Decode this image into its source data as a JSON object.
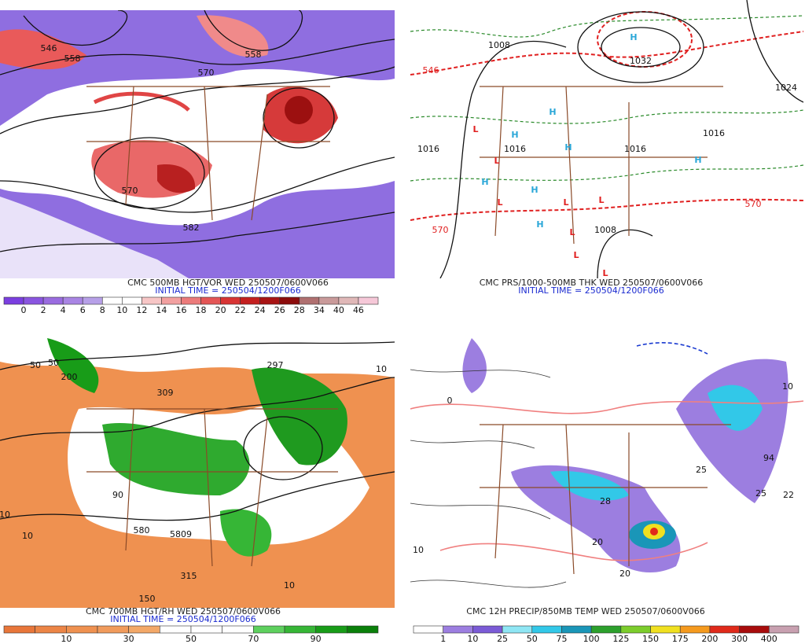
{
  "panels": [
    {
      "caption": "CMC 500MB HGT/VOR WED 250507/0600V066",
      "initial_time": "INITIAL TIME = 250504/1200F066",
      "colorbar": {
        "colors": [
          "#7b3fe0",
          "#8a55e0",
          "#9a6ce0",
          "#a985e4",
          "#b7a0e8",
          "#ffffff",
          "#ffffff",
          "#f7c6c6",
          "#f2a0a0",
          "#ec7b7b",
          "#e45656",
          "#d83434",
          "#c41f1f",
          "#a81414",
          "#8c0c0c",
          "#b07070",
          "#c99a9a",
          "#e0b8b8",
          "#f6c8d8"
        ],
        "labels": [
          "0",
          "2",
          "4",
          "6",
          "8",
          "10",
          "12",
          "14",
          "16",
          "18",
          "20",
          "22",
          "24",
          "26",
          "28",
          "34",
          "40",
          "46"
        ]
      },
      "map_labels": [
        {
          "text": "546"
        },
        {
          "text": "558"
        },
        {
          "text": "558"
        },
        {
          "text": "570"
        },
        {
          "text": "570"
        },
        {
          "text": "582"
        }
      ]
    },
    {
      "caption": "CMC PRS/1000-500MB THK WED 250507/0600V066",
      "initial_time": "INITIAL TIME = 250504/1200F066",
      "map_labels": [
        {
          "text": "H",
          "color": "#2aa7d8"
        },
        {
          "text": "1032"
        },
        {
          "text": "1016"
        },
        {
          "text": "1016"
        },
        {
          "text": "1016"
        },
        {
          "text": "1016"
        },
        {
          "text": "1024"
        },
        {
          "text": "1008"
        },
        {
          "text": "1008"
        },
        {
          "text": "570",
          "color": "#e02020"
        },
        {
          "text": "570",
          "color": "#e02020"
        },
        {
          "text": "546",
          "color": "#e02020"
        },
        {
          "text": "H",
          "color": "#2aa7d8"
        },
        {
          "text": "H",
          "color": "#2aa7d8"
        },
        {
          "text": "H",
          "color": "#2aa7d8"
        },
        {
          "text": "H",
          "color": "#2aa7d8"
        },
        {
          "text": "H",
          "color": "#2aa7d8"
        },
        {
          "text": "H",
          "color": "#2aa7d8"
        },
        {
          "text": "H",
          "color": "#2aa7d8"
        },
        {
          "text": "L",
          "color": "#e02020"
        },
        {
          "text": "L",
          "color": "#e02020"
        },
        {
          "text": "L",
          "color": "#e02020"
        },
        {
          "text": "L",
          "color": "#e02020"
        },
        {
          "text": "L",
          "color": "#e02020"
        },
        {
          "text": "L",
          "color": "#e02020"
        },
        {
          "text": "L",
          "color": "#e02020"
        },
        {
          "text": "L",
          "color": "#e02020"
        }
      ]
    },
    {
      "caption": "CMC 700MB HGT/RH WED 250507/0600V066",
      "initial_time": "INITIAL TIME = 250504/1200F066",
      "colorbar": {
        "colors": [
          "#e8763a",
          "#ec8546",
          "#ef9150",
          "#f19b5c",
          "#f3a868",
          "#ffffff",
          "#ffffff",
          "#ffffff",
          "#5ed05e",
          "#36b636",
          "#189c18",
          "#0a800a"
        ],
        "labels": [
          "10",
          "30",
          "50",
          "70",
          "90"
        ]
      },
      "map_labels": [
        {
          "text": "50"
        },
        {
          "text": "50"
        },
        {
          "text": "200"
        },
        {
          "text": "297"
        },
        {
          "text": "309"
        },
        {
          "text": "10"
        },
        {
          "text": "10"
        },
        {
          "text": "90"
        },
        {
          "text": "580"
        },
        {
          "text": "5809"
        },
        {
          "text": "315"
        },
        {
          "text": "150"
        },
        {
          "text": "10"
        },
        {
          "text": "10"
        }
      ]
    },
    {
      "caption": "CMC 12H PRECIP/850MB TEMP WED 250507/0600V066",
      "colorbar": {
        "colors": [
          "#ffffff",
          "#9c7ee0",
          "#7b5bd6",
          "#8fe6f4",
          "#32c8e8",
          "#1a96b8",
          "#2ca02c",
          "#7ccd2c",
          "#f0e020",
          "#f59a1e",
          "#e02a1a",
          "#a80c0c",
          "#c8a0b0"
        ],
        "labels": [
          "1",
          "10",
          "25",
          "50",
          "75",
          "100",
          "125",
          "150",
          "175",
          "200",
          "300",
          "400"
        ]
      },
      "map_labels": [
        {
          "text": "10"
        },
        {
          "text": "25"
        },
        {
          "text": "25"
        },
        {
          "text": "22"
        },
        {
          "text": "94"
        },
        {
          "text": "28"
        },
        {
          "text": "20"
        },
        {
          "text": "20"
        },
        {
          "text": "0"
        },
        {
          "text": "10"
        }
      ]
    }
  ]
}
